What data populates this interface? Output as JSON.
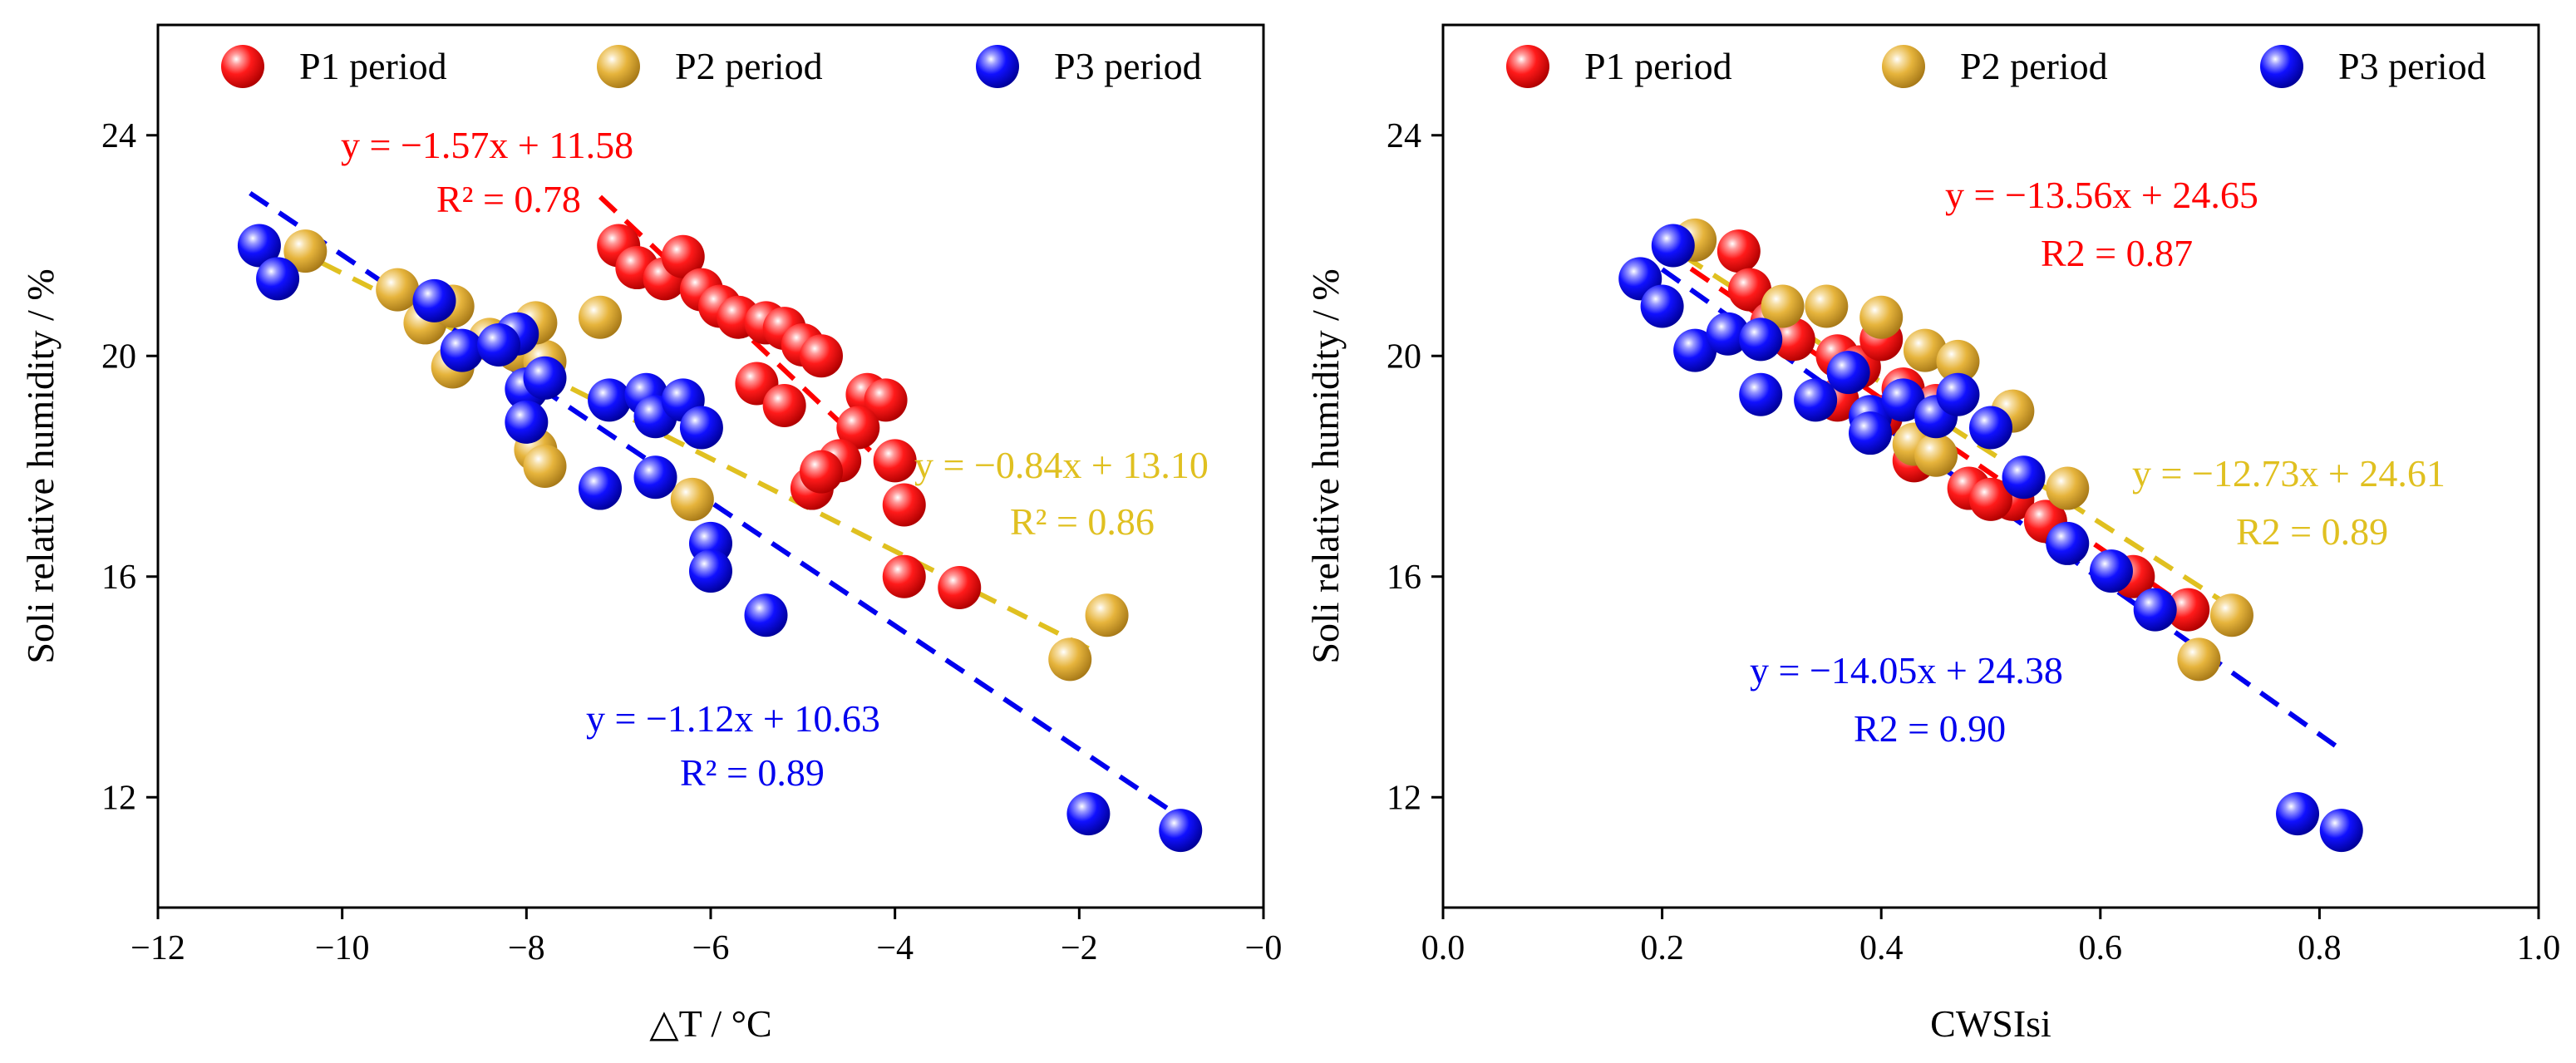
{
  "colors": {
    "P1": "#ff0000",
    "P2": "#e6b43c",
    "P3": "#0000ee",
    "eq_P1": "#ff0000",
    "eq_P2": "#e0c020",
    "eq_P3": "#0000ee"
  },
  "chart_data": [
    {
      "type": "scatter",
      "xlabel": "△T / °C",
      "ylabel": "Soli relative humidity / %",
      "xlim": [
        -12,
        0
      ],
      "ylim": [
        10,
        26
      ],
      "xticks": [
        -12,
        -10,
        -8,
        -6,
        -4,
        -2,
        0
      ],
      "xtick_labels": [
        "−12",
        "−10",
        "−8",
        "−6",
        "−4",
        "−2",
        "−0"
      ],
      "yticks": [
        12,
        16,
        20,
        24
      ],
      "ytick_labels": [
        "12",
        "16",
        "20",
        "24"
      ],
      "legend": [
        {
          "name": "P1 period",
          "key": "P1"
        },
        {
          "name": "P2 period",
          "key": "P2"
        },
        {
          "name": "P3 period",
          "key": "P3"
        }
      ],
      "series": [
        {
          "name": "P1 period",
          "key": "P1",
          "x": [
            -7,
            -6.8,
            -6.5,
            -6.3,
            -6.1,
            -5.9,
            -5.7,
            -5.4,
            -5.2,
            -5,
            -4.8,
            -5.5,
            -5.2,
            -4.3,
            -4.1,
            -4.4,
            -4.6,
            -4.9,
            -4.8,
            -4,
            -3.9,
            -3.9,
            -3.3
          ],
          "y": [
            22,
            21.6,
            21.4,
            21.8,
            21.2,
            20.9,
            20.7,
            20.6,
            20.5,
            20.2,
            20.0,
            19.5,
            19.1,
            19.3,
            19.2,
            18.7,
            18.1,
            17.6,
            17.9,
            18.1,
            17.3,
            16.0,
            15.8
          ]
        },
        {
          "name": "P2 period",
          "key": "P2",
          "x": [
            -10.4,
            -9.4,
            -9.1,
            -8.8,
            -8.4,
            -8.1,
            -7.8,
            -7.9,
            -7.2,
            -8.8,
            -7.9,
            -7.8,
            -6.2,
            -1.7,
            -2.1
          ],
          "y": [
            21.9,
            21.2,
            20.6,
            19.8,
            20.3,
            20.1,
            19.9,
            20.6,
            20.7,
            20.9,
            18.3,
            18.0,
            17.4,
            15.3,
            14.5
          ]
        },
        {
          "name": "P3 period",
          "key": "P3",
          "x": [
            -10.9,
            -10.7,
            -9,
            -8.7,
            -8.1,
            -8.3,
            -8,
            -7.8,
            -8,
            -7.1,
            -6.7,
            -6.6,
            -6.3,
            -6.1,
            -6.6,
            -7.2,
            -6,
            -6,
            -5.4,
            -1.9,
            -0.9
          ],
          "y": [
            22,
            21.4,
            21,
            20.1,
            20.4,
            20.2,
            19.4,
            19.6,
            18.8,
            19.2,
            19.3,
            18.9,
            19.2,
            18.7,
            17.8,
            17.6,
            16.6,
            16.1,
            15.3,
            11.7,
            11.4
          ]
        }
      ],
      "fits": [
        {
          "key": "P1",
          "slope": -1.57,
          "intercept": 11.58,
          "x_range": [
            -7.2,
            -3.9
          ],
          "eq": "y = −1.57x + 11.58",
          "r2": "R² = 0.78"
        },
        {
          "key": "P2",
          "slope": -0.84,
          "intercept": 13.1,
          "x_range": [
            -10.9,
            -1.9
          ],
          "eq": "y = −0.84x + 13.10",
          "r2": "R² = 0.86"
        },
        {
          "key": "P3",
          "slope": -1.12,
          "intercept": 10.63,
          "x_range": [
            -11,
            -0.8
          ],
          "eq": "y = −1.12x + 10.63",
          "r2": "R² = 0.89"
        }
      ]
    },
    {
      "type": "scatter",
      "xlabel": "CWSIsi",
      "ylabel": "Soli relative humidity / %",
      "xlim": [
        0,
        1
      ],
      "ylim": [
        10,
        26
      ],
      "xticks": [
        0,
        0.2,
        0.4,
        0.6,
        0.8,
        1.0
      ],
      "xtick_labels": [
        "0.0",
        "0.2",
        "0.4",
        "0.6",
        "0.8",
        "1.0"
      ],
      "yticks": [
        12,
        16,
        20,
        24
      ],
      "ytick_labels": [
        "12",
        "16",
        "20",
        "24"
      ],
      "legend": [
        {
          "name": "P1 period",
          "key": "P1"
        },
        {
          "name": "P2 period",
          "key": "P2"
        },
        {
          "name": "P3 period",
          "key": "P3"
        }
      ],
      "series": [
        {
          "name": "P1 period",
          "key": "P1",
          "x": [
            0.27,
            0.28,
            0.3,
            0.32,
            0.36,
            0.38,
            0.42,
            0.45,
            0.4,
            0.44,
            0.48,
            0.52,
            0.55,
            0.63,
            0.68,
            0.43,
            0.5,
            0.36,
            0.4
          ],
          "y": [
            21.9,
            21.2,
            20.6,
            20.3,
            20.0,
            19.8,
            19.4,
            19.1,
            18.9,
            18.4,
            17.6,
            17.4,
            17.0,
            16.0,
            15.4,
            18.1,
            17.4,
            19.2,
            20.3
          ]
        },
        {
          "name": "P2 period",
          "key": "P2",
          "x": [
            0.23,
            0.31,
            0.35,
            0.4,
            0.44,
            0.47,
            0.52,
            0.57,
            0.72,
            0.69,
            0.43,
            0.45
          ],
          "y": [
            22.1,
            20.9,
            20.9,
            20.7,
            20.1,
            19.9,
            19.0,
            17.6,
            15.3,
            14.5,
            18.4,
            18.2
          ]
        },
        {
          "name": "P3 period",
          "key": "P3",
          "x": [
            0.18,
            0.21,
            0.2,
            0.23,
            0.26,
            0.29,
            0.29,
            0.34,
            0.37,
            0.39,
            0.42,
            0.45,
            0.47,
            0.5,
            0.39,
            0.53,
            0.57,
            0.61,
            0.65,
            0.78,
            0.82
          ],
          "y": [
            21.4,
            22.0,
            20.9,
            20.1,
            20.4,
            20.3,
            19.3,
            19.2,
            19.7,
            18.9,
            19.2,
            18.9,
            19.3,
            18.7,
            18.6,
            17.8,
            16.6,
            16.1,
            15.4,
            11.7,
            11.4
          ]
        }
      ],
      "fits": [
        {
          "key": "P1",
          "slope": -13.56,
          "intercept": 24.65,
          "x_range": [
            0.2,
            0.69
          ],
          "eq": "y = −13.56x + 24.65",
          "r2": "R2 = 0.87"
        },
        {
          "key": "P2",
          "slope": -12.73,
          "intercept": 24.61,
          "x_range": [
            0.22,
            0.72
          ],
          "eq": "y = −12.73x + 24.61",
          "r2": "R2 = 0.89"
        },
        {
          "key": "P3",
          "slope": -14.05,
          "intercept": 24.38,
          "x_range": [
            0.2,
            0.82
          ],
          "eq": "y = −14.05x + 24.38",
          "r2": "R2 = 0.90"
        }
      ]
    }
  ]
}
